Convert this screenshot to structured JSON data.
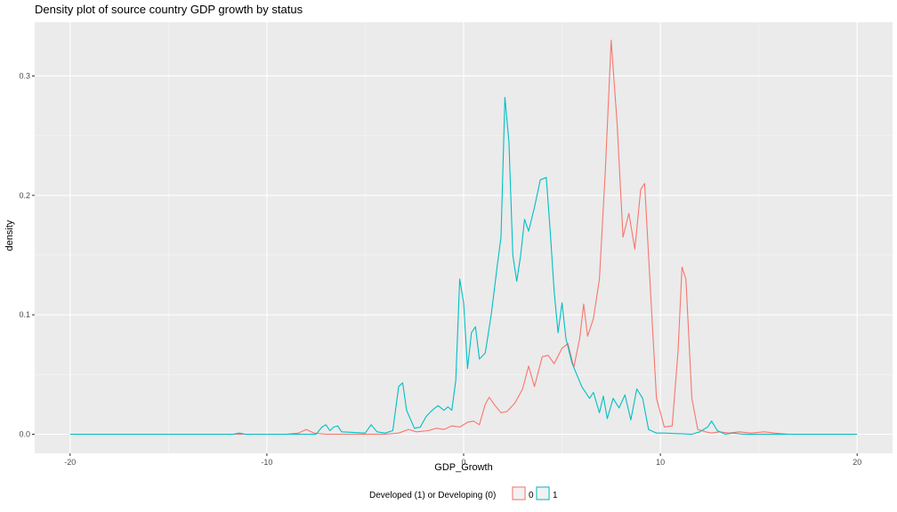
{
  "chart_data": {
    "type": "line",
    "title": "Density plot of source country GDP growth by status",
    "xlabel": "GDP_Growth",
    "ylabel": "density",
    "xlim": [
      -21.8,
      21.8
    ],
    "ylim": [
      -0.016,
      0.345
    ],
    "x_ticks": [
      -20,
      -10,
      0,
      10,
      20
    ],
    "x_tick_labels": [
      "-20",
      "-10",
      "0",
      "10",
      "20"
    ],
    "y_ticks": [
      0.0,
      0.1,
      0.2,
      0.3
    ],
    "y_tick_labels": [
      "0.0",
      "0.1",
      "0.2",
      "0.3"
    ],
    "grid": true,
    "legend": {
      "title": "Developed (1) or Developing (0)",
      "position": "bottom"
    },
    "series": [
      {
        "name": "0",
        "color": "#F8766D",
        "points": [
          [
            -20,
            0
          ],
          [
            -9,
            0
          ],
          [
            -8.4,
            0.001
          ],
          [
            -8.0,
            0.004
          ],
          [
            -7.6,
            0.001
          ],
          [
            -7.0,
            0
          ],
          [
            -4,
            0
          ],
          [
            -3.3,
            0.001
          ],
          [
            -2.8,
            0.004
          ],
          [
            -2.4,
            0.002
          ],
          [
            -1.8,
            0.003
          ],
          [
            -1.4,
            0.005
          ],
          [
            -1.0,
            0.004
          ],
          [
            -0.6,
            0.007
          ],
          [
            -0.2,
            0.006
          ],
          [
            0.2,
            0.01
          ],
          [
            0.5,
            0.011
          ],
          [
            0.8,
            0.008
          ],
          [
            1.1,
            0.025
          ],
          [
            1.3,
            0.031
          ],
          [
            1.6,
            0.024
          ],
          [
            1.9,
            0.018
          ],
          [
            2.2,
            0.019
          ],
          [
            2.6,
            0.026
          ],
          [
            3.0,
            0.038
          ],
          [
            3.3,
            0.057
          ],
          [
            3.6,
            0.04
          ],
          [
            4.0,
            0.065
          ],
          [
            4.3,
            0.066
          ],
          [
            4.6,
            0.059
          ],
          [
            5.0,
            0.072
          ],
          [
            5.3,
            0.076
          ],
          [
            5.6,
            0.056
          ],
          [
            5.9,
            0.08
          ],
          [
            6.1,
            0.109
          ],
          [
            6.3,
            0.082
          ],
          [
            6.6,
            0.097
          ],
          [
            6.9,
            0.13
          ],
          [
            7.2,
            0.22
          ],
          [
            7.5,
            0.33
          ],
          [
            7.8,
            0.26
          ],
          [
            8.1,
            0.165
          ],
          [
            8.4,
            0.185
          ],
          [
            8.7,
            0.155
          ],
          [
            9.0,
            0.205
          ],
          [
            9.2,
            0.21
          ],
          [
            9.5,
            0.12
          ],
          [
            9.8,
            0.03
          ],
          [
            10.2,
            0.006
          ],
          [
            10.6,
            0.007
          ],
          [
            10.9,
            0.07
          ],
          [
            11.1,
            0.14
          ],
          [
            11.3,
            0.13
          ],
          [
            11.6,
            0.03
          ],
          [
            11.9,
            0.004
          ],
          [
            12.3,
            0.002
          ],
          [
            12.6,
            0.001
          ],
          [
            13.0,
            0.002
          ],
          [
            13.5,
            0.001
          ],
          [
            14.0,
            0.002
          ],
          [
            14.6,
            0.001
          ],
          [
            15.3,
            0.002
          ],
          [
            15.8,
            0.001
          ],
          [
            16.5,
            0
          ],
          [
            20,
            0
          ]
        ]
      },
      {
        "name": "1",
        "color": "#00BFC4",
        "points": [
          [
            -20,
            0
          ],
          [
            -11.7,
            0
          ],
          [
            -11.4,
            0.001
          ],
          [
            -11.1,
            0
          ],
          [
            -7.5,
            0
          ],
          [
            -7.2,
            0.006
          ],
          [
            -7.0,
            0.008
          ],
          [
            -6.8,
            0.003
          ],
          [
            -6.6,
            0.006
          ],
          [
            -6.4,
            0.007
          ],
          [
            -6.2,
            0.002
          ],
          [
            -5.0,
            0.001
          ],
          [
            -4.7,
            0.008
          ],
          [
            -4.4,
            0.002
          ],
          [
            -4.0,
            0.001
          ],
          [
            -3.6,
            0.003
          ],
          [
            -3.3,
            0.04
          ],
          [
            -3.1,
            0.043
          ],
          [
            -2.9,
            0.02
          ],
          [
            -2.5,
            0.005
          ],
          [
            -2.2,
            0.006
          ],
          [
            -1.9,
            0.015
          ],
          [
            -1.6,
            0.02
          ],
          [
            -1.3,
            0.024
          ],
          [
            -1.0,
            0.02
          ],
          [
            -0.8,
            0.023
          ],
          [
            -0.6,
            0.02
          ],
          [
            -0.4,
            0.045
          ],
          [
            -0.2,
            0.13
          ],
          [
            0.0,
            0.11
          ],
          [
            0.2,
            0.055
          ],
          [
            0.4,
            0.085
          ],
          [
            0.6,
            0.09
          ],
          [
            0.8,
            0.063
          ],
          [
            1.1,
            0.068
          ],
          [
            1.4,
            0.1
          ],
          [
            1.7,
            0.14
          ],
          [
            1.9,
            0.165
          ],
          [
            2.1,
            0.282
          ],
          [
            2.3,
            0.245
          ],
          [
            2.5,
            0.15
          ],
          [
            2.7,
            0.128
          ],
          [
            2.9,
            0.15
          ],
          [
            3.1,
            0.18
          ],
          [
            3.3,
            0.17
          ],
          [
            3.6,
            0.19
          ],
          [
            3.9,
            0.213
          ],
          [
            4.2,
            0.215
          ],
          [
            4.4,
            0.17
          ],
          [
            4.6,
            0.12
          ],
          [
            4.8,
            0.085
          ],
          [
            5.0,
            0.11
          ],
          [
            5.2,
            0.08
          ],
          [
            5.5,
            0.06
          ],
          [
            6.0,
            0.04
          ],
          [
            6.4,
            0.03
          ],
          [
            6.6,
            0.035
          ],
          [
            6.9,
            0.018
          ],
          [
            7.1,
            0.032
          ],
          [
            7.3,
            0.013
          ],
          [
            7.6,
            0.03
          ],
          [
            7.9,
            0.022
          ],
          [
            8.2,
            0.033
          ],
          [
            8.5,
            0.012
          ],
          [
            8.8,
            0.038
          ],
          [
            9.1,
            0.03
          ],
          [
            9.4,
            0.004
          ],
          [
            9.8,
            0.001
          ],
          [
            10.2,
            0.001
          ],
          [
            11.6,
            0
          ],
          [
            12.0,
            0.002
          ],
          [
            12.4,
            0.006
          ],
          [
            12.6,
            0.011
          ],
          [
            12.9,
            0.003
          ],
          [
            13.3,
            0
          ],
          [
            13.7,
            0.001
          ],
          [
            14.2,
            0
          ],
          [
            20,
            0
          ]
        ]
      }
    ]
  }
}
